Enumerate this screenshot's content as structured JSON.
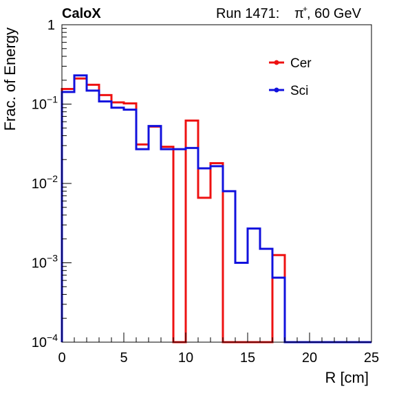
{
  "header": {
    "experiment": "CaloX",
    "run_info": "Run 1471:",
    "particle": "π",
    "particle_charge": "+",
    "energy": ", 60 GeV"
  },
  "chart_data": {
    "type": "line",
    "title": "",
    "xlabel": "R [cm]",
    "ylabel": "Frac. of Energy",
    "xlim": [
      0,
      25
    ],
    "ylim": [
      0.0001,
      1
    ],
    "yscale": "log",
    "grid": false,
    "legend_position": "top-right",
    "x_ticks": [
      {
        "value": 0,
        "label": "0"
      },
      {
        "value": 5,
        "label": "5"
      },
      {
        "value": 10,
        "label": "10"
      },
      {
        "value": 15,
        "label": "15"
      },
      {
        "value": 20,
        "label": "20"
      },
      {
        "value": 25,
        "label": "25"
      }
    ],
    "y_ticks": [
      {
        "value": 1,
        "base": "1",
        "exp": ""
      },
      {
        "value": 0.1,
        "base": "10",
        "exp": "−1"
      },
      {
        "value": 0.01,
        "base": "10",
        "exp": "−2"
      },
      {
        "value": 0.001,
        "base": "10",
        "exp": "−3"
      },
      {
        "value": 0.0001,
        "base": "10",
        "exp": "−4"
      }
    ],
    "bin_edges": [
      0,
      1,
      2,
      3,
      4,
      5,
      6,
      7,
      8,
      9,
      10,
      11,
      12,
      13,
      14,
      15,
      16,
      17,
      18,
      19,
      20,
      21,
      22,
      23,
      24,
      25
    ],
    "series": [
      {
        "name": "Cer",
        "color": "#ee1111",
        "values": [
          0.155,
          0.21,
          0.175,
          0.13,
          0.105,
          0.102,
          0.031,
          0.052,
          0.029,
          0,
          0.062,
          0.0066,
          0.018,
          0,
          0,
          0,
          0,
          0.00125,
          0,
          0,
          0,
          0,
          0,
          0,
          0
        ]
      },
      {
        "name": "Sci",
        "color": "#1111dd",
        "values": [
          0.142,
          0.23,
          0.148,
          0.108,
          0.09,
          0.085,
          0.027,
          0.053,
          0.027,
          0.027,
          0.028,
          0.0155,
          0.0165,
          0.008,
          0.001,
          0.0027,
          0.0015,
          0.00065,
          0,
          0,
          0,
          0,
          0,
          0,
          0
        ]
      }
    ]
  }
}
